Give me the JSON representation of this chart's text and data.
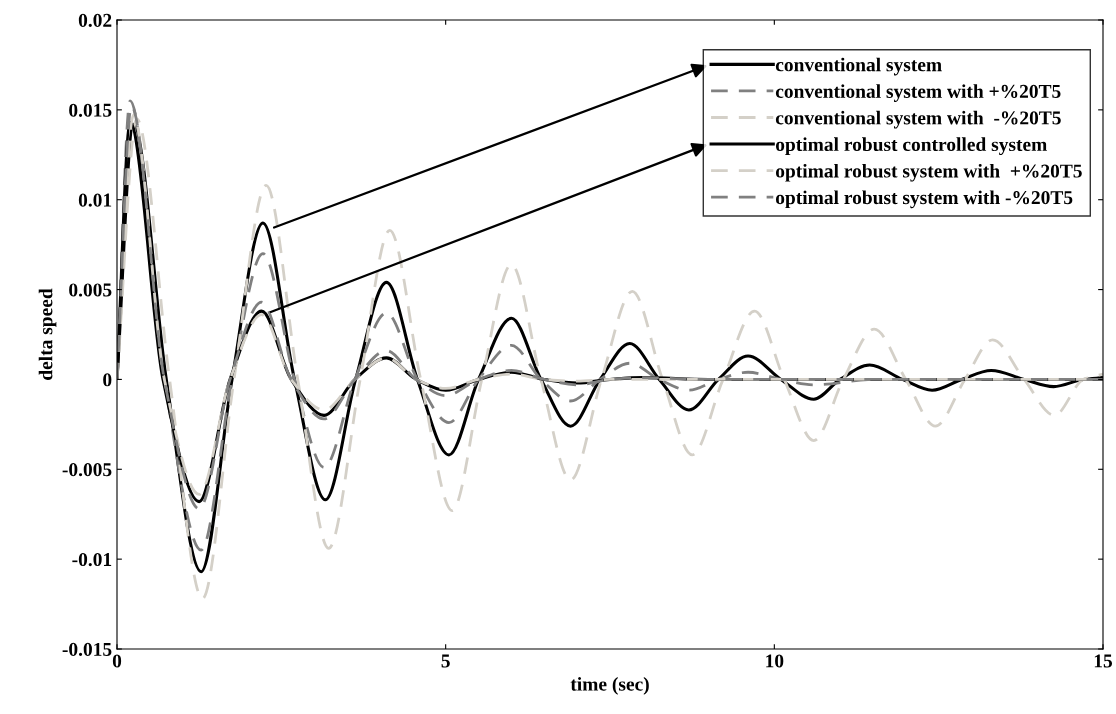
{
  "chart_data": {
    "type": "line",
    "xlabel": "time (sec)",
    "ylabel": "delta speed",
    "xlim": [
      0,
      15
    ],
    "xticks": [
      0,
      5,
      10,
      15
    ],
    "ylim": [
      -0.015,
      0.02
    ],
    "yticks": [
      -0.015,
      -0.01,
      -0.005,
      0,
      0.005,
      0.01,
      0.015,
      0.02
    ],
    "grid": false,
    "legend": "top right",
    "marker": "none",
    "series": [
      {
        "name": "conventional system",
        "color": "#000000",
        "line_style": "solid",
        "x": [
          0,
          0.25,
          0.75,
          1.28,
          1.75,
          2.22,
          2.7,
          3.17,
          3.63,
          4.1,
          4.57,
          5.05,
          5.5,
          6.0,
          6.45,
          6.9,
          7.35,
          7.8,
          8.25,
          8.7,
          9.15,
          9.6,
          10.1,
          10.6,
          11.0,
          11.45,
          11.95,
          12.4,
          12.85,
          13.3,
          13.8,
          14.25,
          14.7,
          15
        ],
        "values": [
          0,
          0.0142,
          0,
          -0.0107,
          0,
          0.0087,
          0,
          -0.0067,
          0,
          0.0054,
          0,
          -0.0042,
          0,
          0.0034,
          0,
          -0.0026,
          0,
          0.002,
          0,
          -0.0017,
          0,
          0.0013,
          0,
          -0.0011,
          0,
          0.0008,
          0,
          -0.0006,
          0,
          0.0005,
          0,
          -0.0004,
          0,
          0.0001
        ]
      },
      {
        "name": "conventional system with +%20T5",
        "color": "#808080",
        "line_style": "dashed",
        "x": [
          0,
          0.2,
          0.72,
          1.28,
          1.75,
          2.22,
          2.7,
          3.15,
          3.62,
          4.1,
          4.57,
          5.05,
          5.5,
          6.0,
          6.45,
          6.9,
          7.35,
          7.8,
          8.25,
          8.7,
          9.15,
          9.6,
          10.1,
          10.6,
          11.5,
          15
        ],
        "values": [
          0,
          0.0155,
          0,
          -0.0095,
          0,
          0.007,
          0,
          -0.0049,
          0,
          0.0037,
          0,
          -0.0024,
          0,
          0.0019,
          0,
          -0.0012,
          0,
          0.0009,
          0,
          -0.0006,
          0,
          0.0004,
          0,
          -0.0003,
          0,
          0
        ]
      },
      {
        "name": "conventional system with  -%20T5",
        "color": "#d4d0c8",
        "line_style": "dashed",
        "x": [
          0,
          0.3,
          0.8,
          1.3,
          1.78,
          2.27,
          2.75,
          3.22,
          3.7,
          4.15,
          4.62,
          5.1,
          5.55,
          6.0,
          6.45,
          6.9,
          7.37,
          7.84,
          8.3,
          8.75,
          9.22,
          9.7,
          10.15,
          10.6,
          11.05,
          11.52,
          12.0,
          12.45,
          12.9,
          13.32,
          13.8,
          14.26,
          14.7,
          15
        ],
        "values": [
          0,
          0.0145,
          0,
          -0.0122,
          0,
          0.0108,
          0,
          -0.0094,
          0,
          0.0083,
          0,
          -0.0073,
          0,
          0.0064,
          0,
          -0.0056,
          0,
          0.0049,
          0,
          -0.0042,
          0,
          0.0038,
          0,
          -0.0034,
          0,
          0.0028,
          0,
          -0.0026,
          0,
          0.0022,
          0,
          -0.002,
          0,
          0.0003
        ]
      },
      {
        "name": "optimal robust controlled system",
        "color": "#000000",
        "line_style": "solid",
        "x": [
          0,
          0.2,
          0.7,
          1.25,
          1.72,
          2.2,
          2.65,
          3.15,
          3.62,
          4.1,
          4.55,
          5.0,
          5.5,
          6.0,
          6.5,
          7.0,
          7.5,
          8.0,
          9,
          15
        ],
        "values": [
          0,
          0.0143,
          0,
          -0.0068,
          0,
          0.0038,
          0,
          -0.002,
          0,
          0.0012,
          0,
          -0.0006,
          0,
          0.0004,
          0,
          -0.0002,
          0,
          0.0001,
          0,
          0
        ]
      },
      {
        "name": "optimal robust system with  +%20T5",
        "color": "#d4d0c8",
        "line_style": "dashed",
        "x": [
          0,
          0.25,
          0.72,
          1.25,
          1.72,
          2.2,
          2.65,
          3.15,
          3.62,
          4.1,
          4.55,
          5.0,
          5.5,
          6.0,
          6.5,
          7.0,
          7.5,
          8.0,
          9,
          15
        ],
        "values": [
          0,
          0.0147,
          0,
          -0.0064,
          0,
          0.0036,
          0,
          -0.0017,
          0,
          0.0012,
          0,
          -0.0005,
          0,
          0.0003,
          0,
          -0.0001,
          0,
          0,
          0,
          0
        ]
      },
      {
        "name": "optimal robust system with -%20T5",
        "color": "#808080",
        "line_style": "dashed",
        "x": [
          0,
          0.22,
          0.72,
          1.25,
          1.72,
          2.2,
          2.65,
          3.15,
          3.62,
          4.1,
          4.55,
          5.0,
          5.5,
          6.0,
          6.5,
          7.0,
          7.5,
          8.0,
          9,
          15
        ],
        "values": [
          0,
          0.0152,
          0,
          -0.0072,
          0,
          0.0043,
          0,
          -0.0022,
          0,
          0.0016,
          0,
          -0.0009,
          0,
          0.0005,
          0,
          -0.0003,
          0,
          0.0001,
          0,
          0
        ]
      }
    ]
  }
}
